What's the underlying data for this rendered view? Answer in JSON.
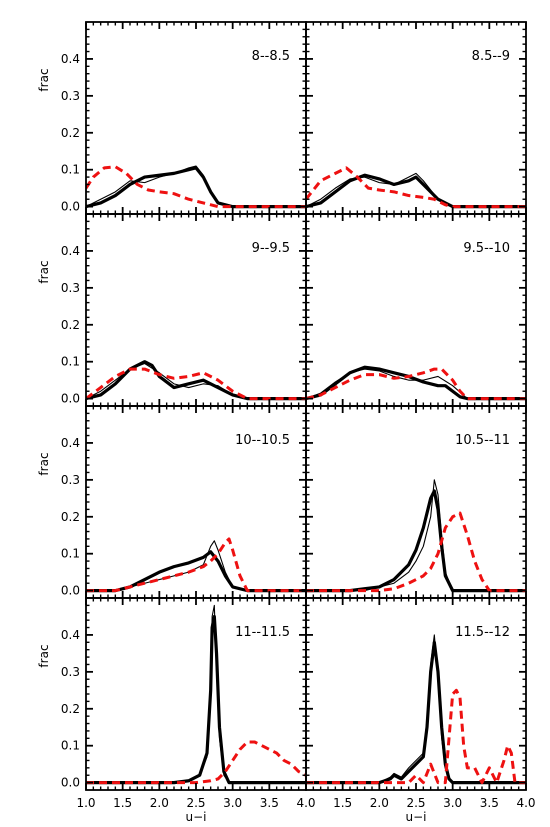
{
  "chart_data": {
    "type": "line",
    "xlabel": "u−i",
    "ylabel": "frac",
    "xlim": [
      1.0,
      4.0
    ],
    "ylim": [
      -0.02,
      0.5
    ],
    "x_ticks": [
      "1.0",
      "1.5",
      "2.0",
      "2.5",
      "3.0",
      "3.5",
      "4.0"
    ],
    "y_ticks": [
      "0.0",
      "0.1",
      "0.2",
      "0.3",
      "0.4"
    ],
    "grid": false,
    "layout": "4 rows x 2 columns, shared axes",
    "panels": [
      {
        "label": "8--8.5",
        "series": [
          {
            "style": "thick-black",
            "x": [
              1.0,
              1.2,
              1.4,
              1.6,
              1.8,
              2.0,
              2.2,
              2.4,
              2.5,
              2.6,
              2.7,
              2.8,
              3.0,
              3.2,
              4.0
            ],
            "y": [
              0.0,
              0.01,
              0.03,
              0.06,
              0.08,
              0.085,
              0.09,
              0.1,
              0.105,
              0.08,
              0.04,
              0.01,
              0.0,
              0.0,
              0.0
            ]
          },
          {
            "style": "thin-black",
            "x": [
              1.0,
              1.2,
              1.4,
              1.6,
              1.8,
              2.0,
              2.2,
              2.4,
              2.5,
              2.6,
              2.7,
              2.8,
              3.0,
              4.0
            ],
            "y": [
              0.0,
              0.02,
              0.04,
              0.07,
              0.065,
              0.08,
              0.09,
              0.105,
              0.11,
              0.085,
              0.04,
              0.01,
              0.0,
              0.0
            ]
          },
          {
            "style": "red-dashed",
            "x": [
              1.0,
              1.1,
              1.25,
              1.4,
              1.55,
              1.7,
              1.85,
              2.0,
              2.2,
              2.4,
              2.6,
              2.8,
              3.0,
              4.0
            ],
            "y": [
              0.05,
              0.08,
              0.105,
              0.108,
              0.09,
              0.06,
              0.045,
              0.04,
              0.035,
              0.02,
              0.01,
              0.0,
              0.0,
              0.0
            ]
          }
        ]
      },
      {
        "label": "8.5--9",
        "series": [
          {
            "style": "thick-black",
            "x": [
              1.0,
              1.2,
              1.4,
              1.6,
              1.8,
              2.0,
              2.2,
              2.4,
              2.5,
              2.6,
              2.8,
              3.0,
              3.2,
              4.0
            ],
            "y": [
              0.0,
              0.01,
              0.04,
              0.07,
              0.085,
              0.075,
              0.06,
              0.07,
              0.08,
              0.06,
              0.02,
              0.0,
              0.0,
              0.0
            ]
          },
          {
            "style": "thin-black",
            "x": [
              1.0,
              1.2,
              1.4,
              1.6,
              1.8,
              2.0,
              2.2,
              2.4,
              2.5,
              2.6,
              2.8,
              3.0,
              4.0
            ],
            "y": [
              0.0,
              0.02,
              0.05,
              0.075,
              0.08,
              0.065,
              0.06,
              0.08,
              0.09,
              0.07,
              0.02,
              0.0,
              0.0
            ]
          },
          {
            "style": "red-dashed",
            "x": [
              1.0,
              1.2,
              1.4,
              1.55,
              1.7,
              1.85,
              2.0,
              2.2,
              2.4,
              2.6,
              2.75,
              2.9,
              3.0,
              4.0
            ],
            "y": [
              0.02,
              0.07,
              0.09,
              0.105,
              0.08,
              0.05,
              0.045,
              0.04,
              0.03,
              0.025,
              0.02,
              0.005,
              0.0,
              0.0
            ]
          }
        ]
      },
      {
        "label": "9--9.5",
        "series": [
          {
            "style": "thick-black",
            "x": [
              1.0,
              1.2,
              1.4,
              1.6,
              1.8,
              1.9,
              2.0,
              2.2,
              2.4,
              2.6,
              2.8,
              3.0,
              3.2,
              4.0
            ],
            "y": [
              0.0,
              0.01,
              0.04,
              0.08,
              0.1,
              0.09,
              0.06,
              0.03,
              0.04,
              0.05,
              0.03,
              0.01,
              0.0,
              0.0
            ]
          },
          {
            "style": "thin-black",
            "x": [
              1.0,
              1.2,
              1.4,
              1.6,
              1.8,
              2.0,
              2.2,
              2.4,
              2.6,
              2.8,
              3.0,
              3.2,
              4.0
            ],
            "y": [
              0.0,
              0.02,
              0.05,
              0.08,
              0.095,
              0.07,
              0.04,
              0.03,
              0.04,
              0.035,
              0.01,
              0.0,
              0.0
            ]
          },
          {
            "style": "red-dashed",
            "x": [
              1.0,
              1.2,
              1.4,
              1.6,
              1.8,
              2.0,
              2.2,
              2.4,
              2.6,
              2.8,
              3.0,
              3.2,
              4.0
            ],
            "y": [
              0.0,
              0.03,
              0.06,
              0.08,
              0.08,
              0.065,
              0.055,
              0.06,
              0.07,
              0.05,
              0.02,
              0.0,
              0.0
            ]
          }
        ]
      },
      {
        "label": "9.5--10",
        "series": [
          {
            "style": "thick-black",
            "x": [
              1.0,
              1.2,
              1.4,
              1.6,
              1.8,
              2.0,
              2.2,
              2.4,
              2.6,
              2.8,
              2.9,
              3.0,
              3.1,
              3.2,
              4.0
            ],
            "y": [
              0.0,
              0.01,
              0.04,
              0.07,
              0.085,
              0.08,
              0.07,
              0.06,
              0.045,
              0.035,
              0.035,
              0.02,
              0.005,
              0.0,
              0.0
            ]
          },
          {
            "style": "thin-black",
            "x": [
              1.0,
              1.2,
              1.4,
              1.6,
              1.8,
              2.0,
              2.2,
              2.4,
              2.6,
              2.8,
              3.0,
              3.2,
              4.0
            ],
            "y": [
              0.0,
              0.015,
              0.045,
              0.07,
              0.08,
              0.075,
              0.06,
              0.05,
              0.05,
              0.06,
              0.035,
              0.0,
              0.0
            ]
          },
          {
            "style": "red-dashed",
            "x": [
              1.0,
              1.2,
              1.4,
              1.6,
              1.8,
              2.0,
              2.2,
              2.4,
              2.6,
              2.75,
              2.85,
              3.0,
              3.1,
              3.2,
              4.0
            ],
            "y": [
              0.0,
              0.01,
              0.03,
              0.05,
              0.065,
              0.065,
              0.055,
              0.06,
              0.07,
              0.08,
              0.08,
              0.05,
              0.02,
              0.0,
              0.0
            ]
          }
        ]
      },
      {
        "label": "10--10.5",
        "series": [
          {
            "style": "thick-black",
            "x": [
              1.0,
              1.4,
              1.6,
              1.8,
              2.0,
              2.2,
              2.4,
              2.6,
              2.7,
              2.8,
              2.9,
              3.0,
              3.2,
              4.0
            ],
            "y": [
              0.0,
              0.0,
              0.01,
              0.03,
              0.05,
              0.065,
              0.075,
              0.09,
              0.105,
              0.08,
              0.04,
              0.01,
              0.0,
              0.0
            ]
          },
          {
            "style": "thin-black",
            "x": [
              1.0,
              1.4,
              1.6,
              1.8,
              2.0,
              2.2,
              2.4,
              2.6,
              2.7,
              2.75,
              2.8,
              2.9,
              3.0,
              3.2,
              4.0
            ],
            "y": [
              0.0,
              0.0,
              0.01,
              0.02,
              0.03,
              0.04,
              0.05,
              0.07,
              0.12,
              0.135,
              0.11,
              0.05,
              0.01,
              0.0,
              0.0
            ]
          },
          {
            "style": "red-dashed",
            "x": [
              1.0,
              1.4,
              1.6,
              1.8,
              2.0,
              2.2,
              2.4,
              2.6,
              2.7,
              2.8,
              2.9,
              2.95,
              3.0,
              3.1,
              3.2,
              4.0
            ],
            "y": [
              0.0,
              0.0,
              0.01,
              0.02,
              0.03,
              0.04,
              0.05,
              0.065,
              0.08,
              0.1,
              0.13,
              0.14,
              0.11,
              0.04,
              0.0,
              0.0
            ]
          }
        ]
      },
      {
        "label": "10.5--11",
        "series": [
          {
            "style": "thick-black",
            "x": [
              1.0,
              1.6,
              1.8,
              2.0,
              2.2,
              2.4,
              2.5,
              2.6,
              2.7,
              2.75,
              2.8,
              2.85,
              2.9,
              3.0,
              4.0
            ],
            "y": [
              0.0,
              0.0,
              0.005,
              0.01,
              0.03,
              0.07,
              0.11,
              0.17,
              0.25,
              0.27,
              0.22,
              0.12,
              0.04,
              0.0,
              0.0
            ]
          },
          {
            "style": "thin-black",
            "x": [
              1.0,
              1.8,
              2.0,
              2.2,
              2.4,
              2.5,
              2.6,
              2.7,
              2.75,
              2.8,
              2.85,
              2.9,
              3.0,
              4.0
            ],
            "y": [
              0.0,
              0.0,
              0.01,
              0.02,
              0.05,
              0.08,
              0.12,
              0.2,
              0.3,
              0.26,
              0.15,
              0.05,
              0.0,
              0.0
            ]
          },
          {
            "style": "red-dashed",
            "x": [
              1.0,
              2.0,
              2.2,
              2.4,
              2.6,
              2.7,
              2.8,
              2.9,
              3.0,
              3.1,
              3.2,
              3.3,
              3.4,
              3.5,
              4.0
            ],
            "y": [
              0.0,
              0.0,
              0.005,
              0.02,
              0.04,
              0.06,
              0.1,
              0.17,
              0.2,
              0.21,
              0.15,
              0.08,
              0.03,
              0.0,
              0.0
            ]
          }
        ]
      },
      {
        "label": "11--11.5",
        "series": [
          {
            "style": "thick-black",
            "x": [
              1.0,
              2.2,
              2.4,
              2.55,
              2.65,
              2.7,
              2.72,
              2.75,
              2.78,
              2.82,
              2.88,
              2.95,
              3.0,
              4.0
            ],
            "y": [
              0.0,
              0.0,
              0.005,
              0.02,
              0.08,
              0.25,
              0.42,
              0.45,
              0.35,
              0.15,
              0.03,
              0.0,
              0.0,
              0.0
            ]
          },
          {
            "style": "thin-black",
            "x": [
              1.0,
              2.2,
              2.4,
              2.55,
              2.65,
              2.7,
              2.72,
              2.75,
              2.78,
              2.82,
              2.88,
              2.95,
              3.0,
              4.0
            ],
            "y": [
              0.0,
              0.0,
              0.005,
              0.02,
              0.07,
              0.28,
              0.45,
              0.48,
              0.3,
              0.12,
              0.02,
              0.0,
              0.0,
              0.0
            ]
          },
          {
            "style": "red-dashed",
            "x": [
              1.0,
              2.5,
              2.7,
              2.8,
              2.9,
              3.0,
              3.1,
              3.2,
              3.3,
              3.4,
              3.5,
              3.6,
              3.7,
              3.8,
              3.9,
              4.0
            ],
            "y": [
              0.0,
              0.0,
              0.005,
              0.01,
              0.03,
              0.06,
              0.09,
              0.11,
              0.11,
              0.1,
              0.09,
              0.08,
              0.06,
              0.05,
              0.03,
              0.02
            ]
          }
        ]
      },
      {
        "label": "11.5--12",
        "series": [
          {
            "style": "thick-black",
            "x": [
              1.0,
              2.0,
              2.15,
              2.2,
              2.3,
              2.4,
              2.5,
              2.6,
              2.65,
              2.7,
              2.75,
              2.8,
              2.85,
              2.9,
              2.95,
              3.0,
              4.0
            ],
            "y": [
              0.0,
              0.0,
              0.01,
              0.02,
              0.01,
              0.03,
              0.05,
              0.07,
              0.15,
              0.3,
              0.38,
              0.3,
              0.15,
              0.05,
              0.01,
              0.0,
              0.0
            ]
          },
          {
            "style": "thin-black",
            "x": [
              1.0,
              2.0,
              2.15,
              2.2,
              2.3,
              2.4,
              2.5,
              2.6,
              2.65,
              2.7,
              2.75,
              2.8,
              2.85,
              2.9,
              2.95,
              3.0,
              4.0
            ],
            "y": [
              0.0,
              0.0,
              0.015,
              0.025,
              0.015,
              0.04,
              0.06,
              0.08,
              0.17,
              0.32,
              0.4,
              0.28,
              0.12,
              0.04,
              0.01,
              0.0,
              0.0
            ]
          },
          {
            "style": "red-dashed",
            "x": [
              1.0,
              2.4,
              2.5,
              2.6,
              2.7,
              2.8,
              2.9,
              3.0,
              3.05,
              3.1,
              3.15,
              3.2,
              3.3,
              3.4,
              3.5,
              3.6,
              3.7,
              3.75,
              3.8,
              3.85,
              3.9,
              4.0
            ],
            "y": [
              0.0,
              0.0,
              0.02,
              0.0,
              0.05,
              0.0,
              0.0,
              0.24,
              0.25,
              0.23,
              0.1,
              0.04,
              0.04,
              0.0,
              0.04,
              0.0,
              0.06,
              0.1,
              0.08,
              0.0,
              0.0,
              0.0
            ]
          }
        ]
      }
    ]
  },
  "colors": {
    "thick_black": "#000000",
    "thin_black": "#000000",
    "red_dashed": "#ee1111",
    "frame": "#000000"
  }
}
